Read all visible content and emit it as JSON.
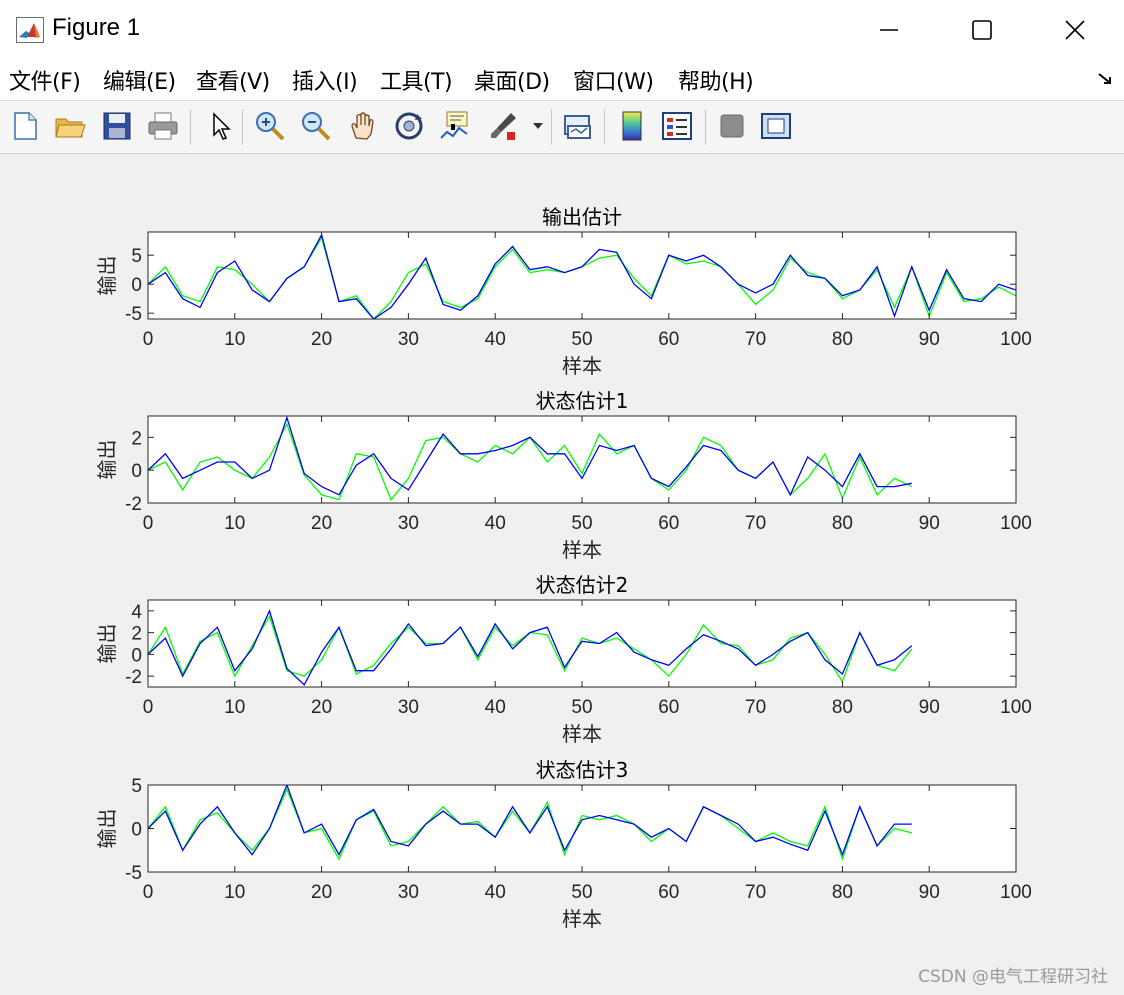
{
  "window": {
    "title": "Figure 1",
    "minimize_label": "minimize",
    "maximize_label": "maximize",
    "close_label": "close"
  },
  "menu": [
    "文件(F)",
    "编辑(E)",
    "查看(V)",
    "插入(I)",
    "工具(T)",
    "桌面(D)",
    "窗口(W)",
    "帮助(H)"
  ],
  "toolbar": [
    {
      "icon": "new-figure-icon"
    },
    {
      "icon": "open-file-icon"
    },
    {
      "icon": "save-icon"
    },
    {
      "icon": "print-icon"
    },
    {
      "icon": "pointer-arrow-icon"
    },
    {
      "icon": "zoom-in-icon"
    },
    {
      "icon": "zoom-out-icon"
    },
    {
      "icon": "pan-hand-icon"
    },
    {
      "icon": "rotate-3d-icon"
    },
    {
      "icon": "data-cursor-icon"
    },
    {
      "icon": "brush-icon"
    },
    {
      "icon": "brush-dropdown-icon"
    },
    {
      "icon": "link-plot-icon"
    },
    {
      "icon": "colorbar-icon"
    },
    {
      "icon": "legend-icon"
    },
    {
      "icon": "hide-plot-tools-icon"
    },
    {
      "icon": "show-plot-tools-icon"
    }
  ],
  "colors": {
    "series1": "#00ff00",
    "series2": "#0000ff",
    "axes": "#262626"
  },
  "watermark": "CSDN @电气工程研习社",
  "chart_data": [
    {
      "type": "line",
      "title": "输出估计",
      "xlabel": "样本",
      "ylabel": "输出",
      "xlim": [
        0,
        100
      ],
      "ylim": [
        -6,
        9
      ],
      "xticks": [
        0,
        10,
        20,
        30,
        40,
        50,
        60,
        70,
        80,
        90,
        100
      ],
      "yticks": [
        -5,
        0,
        5
      ],
      "ytick_labels": [
        "-5",
        "0",
        "5"
      ],
      "series": [
        {
          "color": "#00ff00",
          "x_start": 0,
          "x_step": 2,
          "values": [
            0,
            3,
            -2,
            -3,
            3,
            2.5,
            0,
            -3,
            1,
            3,
            8,
            -3,
            -2,
            -6,
            -3,
            2,
            3.5,
            -3,
            -4,
            -2.5,
            3,
            6,
            2,
            2.5,
            2,
            3,
            4.5,
            5,
            1,
            -2,
            5,
            3.5,
            4,
            3,
            0,
            -3.5,
            -1,
            4.5,
            2,
            1,
            -2.5,
            -1,
            2.5,
            -4,
            3,
            -5.5,
            2,
            -3,
            -2.5,
            -0.5,
            -2
          ]
        },
        {
          "color": "#0000ff",
          "x_start": 0,
          "x_step": 2,
          "values": [
            0,
            2,
            -2.5,
            -4,
            2,
            4,
            -1,
            -3,
            1,
            3,
            8.5,
            -3,
            -2.5,
            -6,
            -4,
            0,
            4.5,
            -3.5,
            -4.5,
            -2,
            3.5,
            6.5,
            2.5,
            3,
            2,
            3,
            6,
            5.5,
            0,
            -2.5,
            5,
            4,
            5,
            3,
            0,
            -1.5,
            0,
            5,
            1.5,
            1,
            -2,
            -1,
            3,
            -5.5,
            3,
            -4.5,
            2.5,
            -2.5,
            -3,
            0,
            -1
          ]
        }
      ]
    },
    {
      "type": "line",
      "title": "状态估计1",
      "xlabel": "样本",
      "ylabel": "输出",
      "xlim": [
        0,
        100
      ],
      "ylim": [
        -2,
        3.3
      ],
      "xticks": [
        0,
        10,
        20,
        30,
        40,
        50,
        60,
        70,
        80,
        90,
        100
      ],
      "yticks": [
        -2,
        0,
        2
      ],
      "ytick_labels": [
        "-2",
        "0",
        "2"
      ],
      "series": [
        {
          "color": "#00ff00",
          "x_start": 0,
          "x_step": 2,
          "values": [
            0,
            0.5,
            -1.2,
            0.5,
            0.8,
            0,
            -0.5,
            0.8,
            2.8,
            -0.3,
            -1.5,
            -1.8,
            1.0,
            0.8,
            -1.8,
            -0.5,
            1.8,
            2.0,
            1.0,
            0.5,
            1.5,
            1.0,
            2.0,
            0.5,
            1.5,
            -0.2,
            2.2,
            1.0,
            1.5,
            -0.5,
            -1.2,
            0,
            2.0,
            1.5,
            0,
            -0.5,
            0.5,
            -1.5,
            -0.5,
            1.0,
            -1.7,
            0.8,
            -1.5,
            -0.5,
            -1.0
          ]
        },
        {
          "color": "#0000ff",
          "x_start": 0,
          "x_step": 2,
          "values": [
            0,
            1.0,
            -0.5,
            0,
            0.5,
            0.5,
            -0.5,
            0,
            3.2,
            -0.2,
            -1.0,
            -1.5,
            0.3,
            1.0,
            -0.5,
            -1.2,
            0.5,
            2.2,
            1.0,
            1.0,
            1.2,
            1.5,
            2.0,
            1.0,
            1.0,
            -0.5,
            1.5,
            1.2,
            1.5,
            -0.5,
            -1.0,
            0.2,
            1.5,
            1.2,
            0,
            -0.5,
            0.5,
            -1.5,
            0.8,
            0,
            -1.0,
            1.0,
            -1.0,
            -1.0,
            -0.8
          ]
        }
      ]
    },
    {
      "type": "line",
      "title": "状态估计2",
      "xlabel": "样本",
      "ylabel": "输出",
      "xlim": [
        0,
        100
      ],
      "ylim": [
        -3,
        5
      ],
      "xticks": [
        0,
        10,
        20,
        30,
        40,
        50,
        60,
        70,
        80,
        90,
        100
      ],
      "yticks": [
        -2,
        0,
        2,
        4
      ],
      "ytick_labels": [
        "-2",
        "0",
        "2",
        "4"
      ],
      "series": [
        {
          "color": "#00ff00",
          "x_start": 0,
          "x_step": 2,
          "values": [
            0,
            2.5,
            -1.8,
            1.2,
            2,
            -2,
            0.8,
            3.5,
            -1.5,
            -2,
            -0.5,
            2.5,
            -1.8,
            -1,
            1.0,
            2.5,
            1.0,
            1.0,
            2.5,
            -0.5,
            2.5,
            0.8,
            2.0,
            1.8,
            -1.5,
            1.5,
            1.0,
            1.5,
            0.5,
            -0.5,
            -2.0,
            0,
            2.7,
            1.0,
            0.8,
            -1.0,
            -0.5,
            1.5,
            2.0,
            0,
            -2.5,
            2.0,
            -1.0,
            -1.5,
            0.5
          ]
        },
        {
          "color": "#0000ff",
          "x_start": 0,
          "x_step": 2,
          "values": [
            0,
            1.5,
            -2,
            1.0,
            2.5,
            -1.5,
            0.5,
            4,
            -1.3,
            -2.8,
            0.2,
            2.5,
            -1.5,
            -1.5,
            0.5,
            2.8,
            0.8,
            1.0,
            2.5,
            -0.2,
            2.8,
            0.5,
            2.0,
            2.5,
            -1.2,
            1.2,
            1.0,
            2.0,
            0.2,
            -0.5,
            -1.0,
            0.5,
            1.8,
            1.2,
            0.5,
            -1.0,
            0,
            1.2,
            2.0,
            -0.5,
            -1.8,
            2.0,
            -1.0,
            -0.5,
            0.8
          ]
        }
      ]
    },
    {
      "type": "line",
      "title": "状态估计3",
      "xlabel": "样本",
      "ylabel": "输出",
      "xlim": [
        0,
        100
      ],
      "ylim": [
        -5,
        5
      ],
      "xticks": [
        0,
        10,
        20,
        30,
        40,
        50,
        60,
        70,
        80,
        90,
        100
      ],
      "yticks": [
        -5,
        0,
        5
      ],
      "ytick_labels": [
        "-5",
        "0",
        "5"
      ],
      "series": [
        {
          "color": "#00ff00",
          "x_start": 0,
          "x_step": 2,
          "values": [
            0,
            2.5,
            -2.5,
            1.0,
            1.8,
            -0.5,
            -2.5,
            0,
            4.5,
            -0.5,
            0,
            -3.5,
            1.0,
            2.0,
            -2.0,
            -1.5,
            0.5,
            2.5,
            0.5,
            0.8,
            -1.0,
            2.0,
            -0.5,
            3.0,
            -3.0,
            1.5,
            1.0,
            1.5,
            0.5,
            -1.5,
            0,
            -1.5,
            2.5,
            1.5,
            0,
            -1.5,
            -0.5,
            -1.5,
            -2.0,
            2.5,
            -3.5,
            2.5,
            -2.0,
            0,
            -0.5
          ]
        },
        {
          "color": "#0000ff",
          "x_start": 0,
          "x_step": 2,
          "values": [
            0,
            2.0,
            -2.5,
            0.5,
            2.5,
            -0.5,
            -3,
            0,
            5,
            -0.5,
            0.5,
            -3,
            1.0,
            2.2,
            -1.5,
            -2.0,
            0.5,
            2.0,
            0.5,
            0.5,
            -1.0,
            2.5,
            -0.5,
            2.5,
            -2.5,
            1.0,
            1.5,
            1.0,
            0.5,
            -1.0,
            0,
            -1.5,
            2.5,
            1.5,
            0.5,
            -1.5,
            -1.0,
            -1.8,
            -2.5,
            2.0,
            -3.0,
            2.5,
            -2.0,
            0.5,
            0.5
          ]
        }
      ]
    }
  ]
}
